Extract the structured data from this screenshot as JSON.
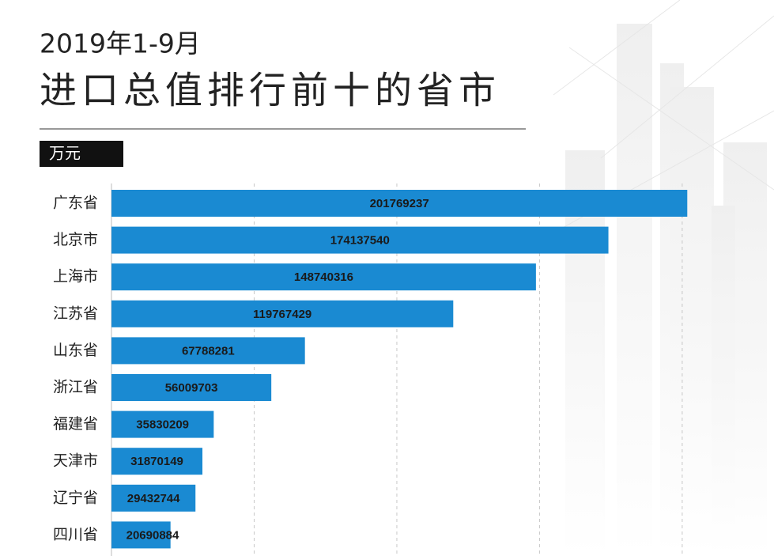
{
  "chart_data": {
    "type": "bar",
    "orientation": "horizontal",
    "title": "2019年1-9月",
    "subtitle": "进口总值排行前十的省市",
    "unit": "万元",
    "categories": [
      "广东省",
      "北京市",
      "上海市",
      "江苏省",
      "山东省",
      "浙江省",
      "福建省",
      "天津市",
      "辽宁省",
      "四川省"
    ],
    "values": [
      201769237,
      174137540,
      148740316,
      119767429,
      67788281,
      56009703,
      35830209,
      31870149,
      29432744,
      20690884
    ],
    "color": "#1a8ad2",
    "xlim": [
      0,
      210000000
    ],
    "xticks": [
      50000000,
      100000000,
      150000000,
      200000000
    ],
    "grid": true
  }
}
